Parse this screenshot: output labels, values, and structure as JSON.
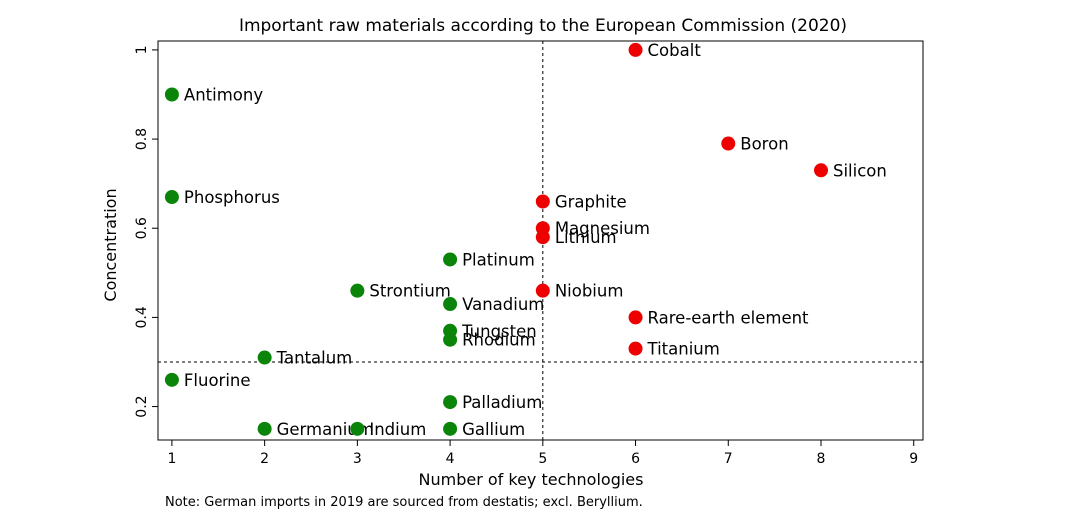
{
  "chart_data": {
    "type": "scatter",
    "title": "Important raw materials according to the European Commission (2020)",
    "xlabel": "Number of key technologies",
    "ylabel": "Concentration",
    "xlim": [
      0.85,
      9.1
    ],
    "ylim": [
      0.125,
      1.02
    ],
    "xticks": [
      1,
      2,
      3,
      4,
      5,
      6,
      7,
      8,
      9
    ],
    "xtick_labels": [
      "1",
      "2",
      "3",
      "4",
      "5",
      "6",
      "7",
      "8",
      "9"
    ],
    "yticks": [
      0.2,
      0.4,
      0.6,
      0.8,
      1
    ],
    "ytick_labels": [
      "0.2",
      "0.4",
      "0.6",
      "0.8",
      "1"
    ],
    "reference_lines": {
      "x": 5,
      "y": 0.3
    },
    "grid": false,
    "colors": {
      "critical": "#ee0000",
      "other": "#0a850a"
    },
    "points": [
      {
        "name": "Cobalt",
        "x": 6,
        "y": 1.0,
        "group": "critical"
      },
      {
        "name": "Boron",
        "x": 7,
        "y": 0.79,
        "group": "critical"
      },
      {
        "name": "Silicon",
        "x": 8,
        "y": 0.73,
        "group": "critical"
      },
      {
        "name": "Graphite",
        "x": 5,
        "y": 0.66,
        "group": "critical"
      },
      {
        "name": "Magnesium",
        "x": 5,
        "y": 0.6,
        "group": "critical"
      },
      {
        "name": "Lithium",
        "x": 5,
        "y": 0.58,
        "group": "critical"
      },
      {
        "name": "Niobium",
        "x": 5,
        "y": 0.46,
        "group": "critical"
      },
      {
        "name": "Rare-earth element",
        "x": 6,
        "y": 0.4,
        "group": "critical"
      },
      {
        "name": "Titanium",
        "x": 6,
        "y": 0.33,
        "group": "critical"
      },
      {
        "name": "Antimony",
        "x": 1,
        "y": 0.9,
        "group": "other"
      },
      {
        "name": "Phosphorus",
        "x": 1,
        "y": 0.67,
        "group": "other"
      },
      {
        "name": "Fluorine",
        "x": 1,
        "y": 0.26,
        "group": "other"
      },
      {
        "name": "Tantalum",
        "x": 2,
        "y": 0.31,
        "group": "other"
      },
      {
        "name": "Germanium",
        "x": 2,
        "y": 0.15,
        "group": "other"
      },
      {
        "name": "Strontium",
        "x": 3,
        "y": 0.46,
        "group": "other"
      },
      {
        "name": "Indium",
        "x": 3,
        "y": 0.15,
        "group": "other"
      },
      {
        "name": "Platinum",
        "x": 4,
        "y": 0.53,
        "group": "other"
      },
      {
        "name": "Vanadium",
        "x": 4,
        "y": 0.43,
        "group": "other"
      },
      {
        "name": "Tungsten",
        "x": 4,
        "y": 0.37,
        "group": "other"
      },
      {
        "name": "Rhodium",
        "x": 4,
        "y": 0.35,
        "group": "other"
      },
      {
        "name": "Palladium",
        "x": 4,
        "y": 0.21,
        "group": "other"
      },
      {
        "name": "Gallium",
        "x": 4,
        "y": 0.15,
        "group": "other"
      }
    ],
    "note": "Note: German imports in 2019 are sourced from destatis; excl. Beryllium."
  }
}
